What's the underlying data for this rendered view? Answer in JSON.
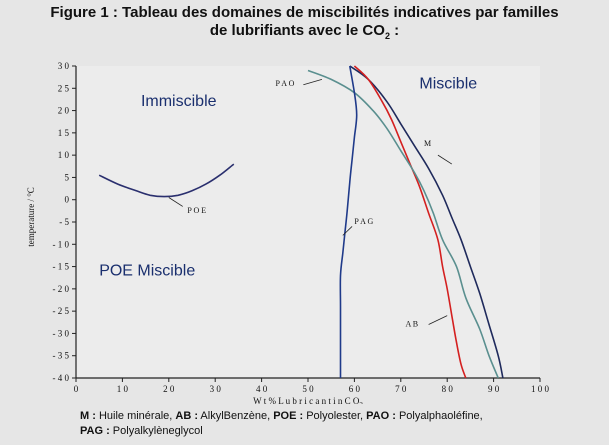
{
  "title": {
    "line1": "Figure 1 : Tableau des domaines de miscibilités indicatives par familles",
    "line2_pre": "de lubrifiants avec le CO",
    "line2_sub": "2",
    "line2_post": " :"
  },
  "caption": {
    "items": [
      {
        "abbr": "M :",
        "text": " Huile minérale, "
      },
      {
        "abbr": "AB :",
        "text": " AlkylBenzène, "
      },
      {
        "abbr": "POE :",
        "text": " Polyolester, "
      },
      {
        "abbr": "PAO :",
        "text": " Polyalphaoléfine,"
      }
    ],
    "line2_abbr": "PAG :",
    "line2_text": " Polyalkylèneglycol"
  },
  "chart_data": {
    "type": "line",
    "xlabel": "W t %   L u b r i c a n t  i n  C O",
    "xlabel_sub": "2",
    "ylabel": "temperature / °C",
    "xlim": [
      0,
      100
    ],
    "ylim": [
      -40,
      30
    ],
    "xticks": [
      "0",
      "1 0",
      "2 0",
      "3 0",
      "4 0",
      "5 0",
      "6 0",
      "7 0",
      "8 0",
      "9 0",
      "1 0 0"
    ],
    "yticks": [
      "3 0",
      "2 5",
      "2 0",
      "1 5",
      "1 0",
      "5",
      "0",
      "- 5",
      "- 1 0",
      "- 1 5",
      "- 2 0",
      "- 2 5",
      "- 3 0",
      "- 3 5",
      "- 4 0"
    ],
    "grid": "horizontal-dashed",
    "region_labels": [
      {
        "text": "Immiscible",
        "x": 14,
        "y": 21
      },
      {
        "text": "Miscible",
        "x": 74,
        "y": 25
      },
      {
        "text": "POE Miscible",
        "x": 5,
        "y": -17
      }
    ],
    "series": [
      {
        "name": "M",
        "color": "#1f2a5c",
        "label_pos": [
          75,
          12
        ],
        "points": [
          [
            59,
            30
          ],
          [
            63,
            27
          ],
          [
            67,
            22
          ],
          [
            70,
            17
          ],
          [
            73,
            12
          ],
          [
            76,
            7
          ],
          [
            79,
            1
          ],
          [
            81,
            -4
          ],
          [
            83,
            -9
          ],
          [
            85,
            -15
          ],
          [
            87,
            -21
          ],
          [
            89,
            -28
          ],
          [
            91,
            -35
          ],
          [
            92,
            -40
          ]
        ]
      },
      {
        "name": "AB",
        "color": "#d42020",
        "label_pos": [
          71,
          -28.5
        ],
        "points": [
          [
            60,
            30
          ],
          [
            63,
            27
          ],
          [
            66,
            22
          ],
          [
            68,
            18
          ],
          [
            70,
            13
          ],
          [
            72,
            8
          ],
          [
            74,
            3
          ],
          [
            76,
            -3
          ],
          [
            78,
            -9
          ],
          [
            79,
            -15
          ],
          [
            80,
            -20
          ],
          [
            81,
            -26
          ],
          [
            82,
            -32
          ],
          [
            83,
            -37
          ],
          [
            84,
            -40
          ]
        ]
      },
      {
        "name": "PAO",
        "color": "#5a8f8f",
        "label_pos": [
          43,
          25.5
        ],
        "points": [
          [
            50,
            29
          ],
          [
            55,
            27
          ],
          [
            60,
            24
          ],
          [
            64,
            20
          ],
          [
            67,
            16
          ],
          [
            70,
            11
          ],
          [
            73,
            6
          ],
          [
            75,
            2
          ],
          [
            77,
            -3
          ],
          [
            79,
            -9
          ],
          [
            82,
            -15
          ],
          [
            84,
            -22
          ],
          [
            87,
            -29
          ],
          [
            89,
            -35
          ],
          [
            91,
            -40
          ]
        ]
      },
      {
        "name": "PAG",
        "color": "#1f3a8a",
        "label_pos": [
          60,
          -5.5
        ],
        "points": [
          [
            57,
            -40
          ],
          [
            57,
            -33
          ],
          [
            57,
            -24
          ],
          [
            57,
            -17
          ],
          [
            57.5,
            -12
          ],
          [
            58,
            -7
          ],
          [
            58.5,
            -2
          ],
          [
            59,
            4
          ],
          [
            59.5,
            9
          ],
          [
            60,
            14
          ],
          [
            60.5,
            19
          ],
          [
            60,
            24
          ],
          [
            59,
            30
          ]
        ]
      },
      {
        "name": "POE",
        "color": "#2a2f6e",
        "label_pos": [
          24,
          -3
        ],
        "points": [
          [
            5,
            5.5
          ],
          [
            9,
            3.5
          ],
          [
            13,
            2
          ],
          [
            16,
            1
          ],
          [
            19,
            0.7
          ],
          [
            22,
            1
          ],
          [
            25,
            2
          ],
          [
            28,
            3.5
          ],
          [
            31,
            5.5
          ],
          [
            34,
            8
          ]
        ]
      }
    ]
  }
}
